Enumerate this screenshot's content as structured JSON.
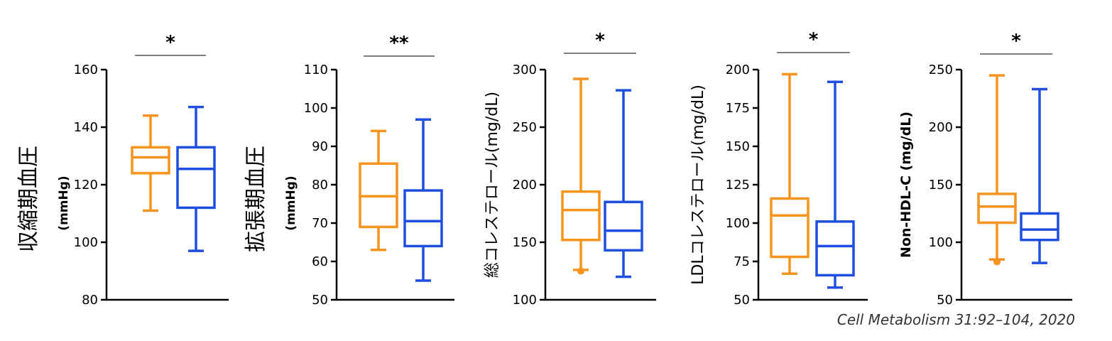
{
  "colors": {
    "group1": "#F7941D",
    "group2": "#1F4FE0",
    "axis": "#000000",
    "bracket": "#555555"
  },
  "citation": "Cell Metabolism 31:92–104, 2020",
  "chart_data": [
    {
      "type": "box",
      "ylabel": "収縮期血圧",
      "yunit": "(mmHg)",
      "ylim": [
        80,
        160
      ],
      "ticks": [
        80,
        100,
        120,
        140,
        160
      ],
      "significance": "*",
      "boxes": [
        {
          "min": 111,
          "q1": 124,
          "median": 129.5,
          "q3": 133,
          "max": 144,
          "outliers": []
        },
        {
          "min": 97,
          "q1": 112,
          "median": 125.5,
          "q3": 133,
          "max": 147,
          "outliers": []
        }
      ]
    },
    {
      "type": "box",
      "ylabel": "拡張期血圧",
      "yunit": "(mmHg)",
      "ylim": [
        50,
        110
      ],
      "ticks": [
        50,
        60,
        70,
        80,
        90,
        100,
        110
      ],
      "significance": "**",
      "boxes": [
        {
          "min": 63,
          "q1": 69,
          "median": 77,
          "q3": 85.5,
          "max": 94,
          "outliers": []
        },
        {
          "min": 55,
          "q1": 64,
          "median": 70.5,
          "q3": 78.5,
          "max": 97,
          "outliers": []
        }
      ]
    },
    {
      "type": "box",
      "ylabel": "総コレステロール(mg/dL)",
      "yunit": "",
      "ylim": [
        100,
        300
      ],
      "ticks": [
        100,
        150,
        200,
        250,
        300
      ],
      "significance": "*",
      "boxes": [
        {
          "min": 126,
          "q1": 152,
          "median": 178,
          "q3": 194,
          "max": 292,
          "outliers": [
            125
          ]
        },
        {
          "min": 120,
          "q1": 143,
          "median": 160,
          "q3": 185,
          "max": 282,
          "outliers": []
        }
      ]
    },
    {
      "type": "box",
      "ylabel": "LDLコレステロール(mg/dL)",
      "yunit": "",
      "ylim": [
        50,
        200
      ],
      "ticks": [
        50,
        75,
        100,
        125,
        150,
        175,
        200
      ],
      "significance": "*",
      "boxes": [
        {
          "min": 67,
          "q1": 78,
          "median": 105,
          "q3": 116,
          "max": 197,
          "outliers": []
        },
        {
          "min": 58,
          "q1": 66,
          "median": 85,
          "q3": 101,
          "max": 192,
          "outliers": []
        }
      ]
    },
    {
      "type": "box",
      "ylabel": "Non-HDL-C (mg/dL)",
      "yunit": "",
      "ylim": [
        50,
        250
      ],
      "ticks": [
        50,
        100,
        150,
        200,
        250
      ],
      "significance": "*",
      "boxes": [
        {
          "min": 85,
          "q1": 117,
          "median": 131,
          "q3": 142,
          "max": 245,
          "outliers": [
            83
          ]
        },
        {
          "min": 82,
          "q1": 102,
          "median": 111,
          "q3": 125,
          "max": 233,
          "outliers": []
        }
      ]
    }
  ]
}
